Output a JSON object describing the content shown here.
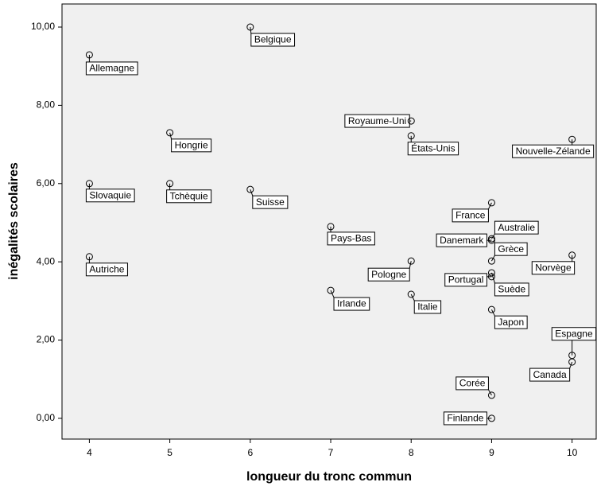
{
  "chart_data": {
    "type": "scatter",
    "xlabel": "longueur du tronc commun",
    "ylabel": "inégalités scolaires",
    "labels": [
      "Allemagne",
      "Belgique",
      "Hongrie",
      "Royaume-Uni",
      "États-Unis",
      "Nouvelle-Zélande",
      "Slovaquie",
      "Tchèquie",
      "Suisse",
      "Pays-Bas",
      "France",
      "Australie",
      "Danemark",
      "Grèce",
      "Autriche",
      "Pologne",
      "Norvège",
      "Portugal",
      "Suède",
      "Irlande",
      "Italie",
      "Japon",
      "Espagne",
      "Canada",
      "Corée",
      "Finlande"
    ],
    "x": [
      4,
      6,
      5,
      8,
      8,
      10,
      4,
      5,
      6,
      7,
      9,
      9,
      9,
      9,
      4,
      8,
      10,
      9,
      9,
      7,
      8,
      9,
      10,
      10,
      9,
      9
    ],
    "values": [
      9.29,
      10.0,
      7.3,
      7.6,
      7.22,
      7.13,
      6.0,
      6.0,
      5.85,
      4.9,
      5.51,
      4.59,
      4.55,
      4.02,
      4.13,
      4.02,
      4.17,
      3.62,
      3.72,
      3.27,
      3.17,
      2.78,
      1.61,
      1.44,
      0.59,
      0.0
    ],
    "xlim": [
      3.66,
      10.3
    ],
    "xticks": [
      4,
      5,
      6,
      7,
      8,
      9,
      10
    ],
    "ylim": [
      -0.53,
      10.59
    ],
    "yticks": [
      {
        "value": 0,
        "label": "0,00"
      },
      {
        "value": 2,
        "label": "2,00"
      },
      {
        "value": 4,
        "label": "4,00"
      },
      {
        "value": 6,
        "label": "6,00"
      },
      {
        "value": 8,
        "label": "8,00"
      },
      {
        "value": 10,
        "label": "10,00"
      }
    ]
  }
}
